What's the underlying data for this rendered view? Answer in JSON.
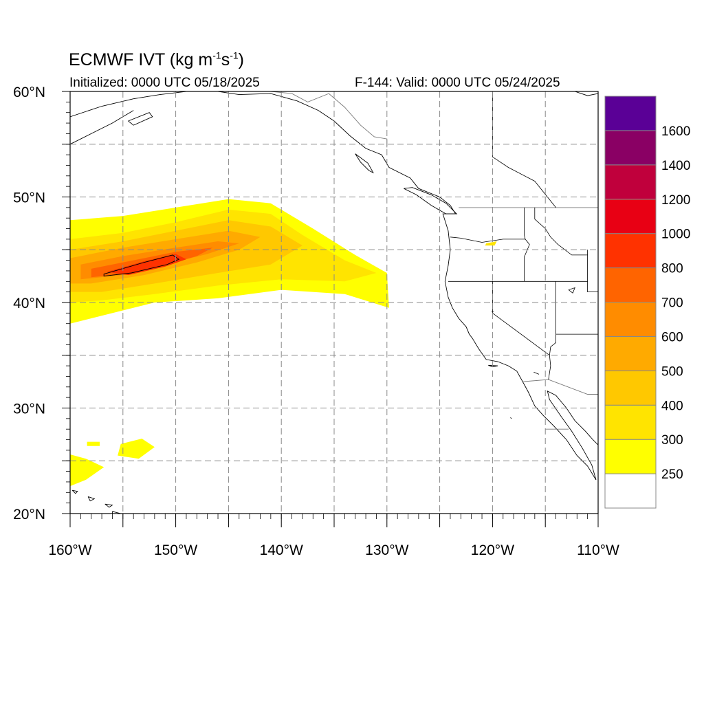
{
  "title": {
    "main": "ECMWF IVT (kg m",
    "exp1": "-1",
    "mid": "s",
    "exp2": "-1",
    "close": ")"
  },
  "initialized": "Initialized: 0000 UTC 05/18/2025",
  "valid": "F-144: Valid: 0000 UTC 05/24/2025",
  "lat_labels": [
    {
      "text": "60°N",
      "value": 60
    },
    {
      "text": "50°N",
      "value": 50
    },
    {
      "text": "40°N",
      "value": 40
    },
    {
      "text": "30°N",
      "value": 30
    },
    {
      "text": "20°N",
      "value": 20
    }
  ],
  "lon_labels": [
    {
      "text": "160°W",
      "value": -160
    },
    {
      "text": "150°W",
      "value": -150
    },
    {
      "text": "140°W",
      "value": -140
    },
    {
      "text": "130°W",
      "value": -130
    },
    {
      "text": "120°W",
      "value": -120
    },
    {
      "text": "110°W",
      "value": -110
    }
  ],
  "map_extent": {
    "lon": [
      -160,
      -110
    ],
    "lat": [
      20,
      60
    ]
  },
  "colorbar": {
    "levels": [
      {
        "label": "",
        "color": "#ffffff"
      },
      {
        "label": "250",
        "color": "#ffff00"
      },
      {
        "label": "300",
        "color": "#ffe400"
      },
      {
        "label": "400",
        "color": "#ffc800"
      },
      {
        "label": "500",
        "color": "#ffaa00"
      },
      {
        "label": "600",
        "color": "#ff8c00"
      },
      {
        "label": "700",
        "color": "#ff6400"
      },
      {
        "label": "800",
        "color": "#ff3200"
      },
      {
        "label": "1000",
        "color": "#e80014"
      },
      {
        "label": "1200",
        "color": "#c0003c"
      },
      {
        "label": "1400",
        "color": "#8a0064"
      },
      {
        "label": "1600",
        "color": "#5a0096"
      }
    ]
  },
  "ivt_features": [
    {
      "name": "atmospheric-river-250",
      "color": "#ffff00",
      "lonlat": [
        [
          -160,
          47.8
        ],
        [
          -155,
          48.2
        ],
        [
          -150,
          49.0
        ],
        [
          -145,
          49.8
        ],
        [
          -141,
          49.4
        ],
        [
          -137,
          47.0
        ],
        [
          -133,
          44.5
        ],
        [
          -130,
          42.8
        ],
        [
          -129.8,
          39.5
        ],
        [
          -134,
          40.8
        ],
        [
          -140,
          41.2
        ],
        [
          -146,
          40.4
        ],
        [
          -152,
          40.0
        ],
        [
          -156,
          39.0
        ],
        [
          -160,
          38.0
        ]
      ]
    },
    {
      "name": "atmospheric-river-300",
      "color": "#ffe400",
      "lonlat": [
        [
          -160,
          46.0
        ],
        [
          -155,
          46.6
        ],
        [
          -150,
          47.6
        ],
        [
          -145,
          48.8
        ],
        [
          -141,
          48.4
        ],
        [
          -138,
          46.4
        ],
        [
          -134,
          44.0
        ],
        [
          -131,
          42.8
        ],
        [
          -134,
          42.0
        ],
        [
          -140,
          42.2
        ],
        [
          -146,
          41.6
        ],
        [
          -152,
          40.8
        ],
        [
          -157,
          40.2
        ],
        [
          -160,
          40.0
        ]
      ]
    },
    {
      "name": "atmospheric-river-400",
      "color": "#ffc800",
      "lonlat": [
        [
          -160,
          45.0
        ],
        [
          -155,
          45.8
        ],
        [
          -150,
          46.8
        ],
        [
          -145,
          47.8
        ],
        [
          -141,
          47.2
        ],
        [
          -138,
          45.4
        ],
        [
          -141,
          43.6
        ],
        [
          -146,
          42.8
        ],
        [
          -152,
          41.8
        ],
        [
          -157,
          41.0
        ],
        [
          -160,
          41.0
        ]
      ]
    },
    {
      "name": "atmospheric-river-500",
      "color": "#ffaa00",
      "lonlat": [
        [
          -160,
          44.2
        ],
        [
          -155,
          45.2
        ],
        [
          -150,
          46.0
        ],
        [
          -145,
          46.8
        ],
        [
          -142,
          46.2
        ],
        [
          -144,
          45.0
        ],
        [
          -148,
          43.8
        ],
        [
          -153,
          42.6
        ],
        [
          -158,
          41.8
        ],
        [
          -160,
          41.8
        ]
      ]
    },
    {
      "name": "atmospheric-river-600",
      "color": "#ff8c00",
      "lonlat": [
        [
          -159,
          43.6
        ],
        [
          -155,
          44.4
        ],
        [
          -150,
          45.2
        ],
        [
          -146,
          45.8
        ],
        [
          -144,
          45.6
        ],
        [
          -147,
          44.6
        ],
        [
          -151,
          43.6
        ],
        [
          -155,
          42.6
        ],
        [
          -159,
          42.2
        ]
      ]
    },
    {
      "name": "atmospheric-river-700",
      "color": "#ff6400",
      "lonlat": [
        [
          -158,
          43.2
        ],
        [
          -154,
          44.0
        ],
        [
          -150,
          44.8
        ],
        [
          -146.5,
          45.2
        ],
        [
          -148,
          44.4
        ],
        [
          -151.5,
          43.4
        ],
        [
          -155,
          42.7
        ],
        [
          -158,
          42.4
        ]
      ]
    },
    {
      "name": "atmospheric-river-800",
      "color": "#ff3200",
      "lonlat": [
        [
          -156.5,
          42.9
        ],
        [
          -153,
          43.9
        ],
        [
          -150,
          44.6
        ],
        [
          -149,
          44.1
        ],
        [
          -151,
          43.4
        ],
        [
          -154.5,
          42.6
        ]
      ]
    },
    {
      "name": "subtropical-blob-a",
      "color": "#ffff00",
      "lonlat": [
        [
          -160,
          25.6
        ],
        [
          -158.5,
          25.2
        ],
        [
          -156.8,
          24.4
        ],
        [
          -158.5,
          23.2
        ],
        [
          -160,
          22.6
        ]
      ]
    },
    {
      "name": "subtropical-blob-b",
      "color": "#ffff00",
      "lonlat": [
        [
          -155.2,
          26.6
        ],
        [
          -153.2,
          27.1
        ],
        [
          -152.0,
          26.3
        ],
        [
          -153.5,
          25.2
        ],
        [
          -155.5,
          25.5
        ]
      ]
    },
    {
      "name": "subtropical-blob-c",
      "color": "#ffff00",
      "lonlat": [
        [
          -158.4,
          26.8
        ],
        [
          -157.2,
          26.8
        ],
        [
          -157.2,
          26.4
        ],
        [
          -158.4,
          26.4
        ]
      ]
    },
    {
      "name": "tiny-blob-near-oregon",
      "color": "#ffe400",
      "lonlat": [
        [
          -120.6,
          45.6
        ],
        [
          -119.6,
          45.8
        ],
        [
          -119.8,
          45.4
        ],
        [
          -120.7,
          45.4
        ]
      ]
    }
  ],
  "contour_1000": {
    "color": "#000000",
    "lonlat": [
      [
        -156.8,
        42.7
      ],
      [
        -153.0,
        43.8
      ],
      [
        -150.3,
        44.5
      ],
      [
        -149.7,
        44.1
      ],
      [
        -150.8,
        43.6
      ],
      [
        -154.2,
        42.8
      ],
      [
        -156.8,
        42.5
      ]
    ]
  },
  "coastlines": [
    {
      "name": "north-america-west-coast",
      "lonlat": [
        [
          -160,
          57.6
        ],
        [
          -157,
          58.6
        ],
        [
          -154,
          59.3
        ],
        [
          -151.5,
          59.7
        ],
        [
          -149,
          60.0
        ],
        [
          -146,
          60.0
        ],
        [
          -144,
          59.7
        ],
        [
          -141,
          59.8
        ],
        [
          -138.5,
          59.1
        ],
        [
          -136.5,
          58.2
        ],
        [
          -135,
          57.2
        ],
        [
          -133.5,
          55.8
        ],
        [
          -132,
          54.6
        ],
        [
          -130.5,
          54.0
        ],
        [
          -129.8,
          52.8
        ],
        [
          -127.8,
          51.8
        ],
        [
          -127,
          50.8
        ],
        [
          -125,
          50.0
        ],
        [
          -124,
          49.2
        ],
        [
          -123.5,
          48.4
        ],
        [
          -124.7,
          48.4
        ],
        [
          -124.2,
          46.8
        ],
        [
          -124,
          45.0
        ],
        [
          -124.2,
          43.5
        ],
        [
          -124.5,
          42.0
        ],
        [
          -124.2,
          40.5
        ],
        [
          -123.8,
          39.5
        ],
        [
          -123.2,
          38.5
        ],
        [
          -122.5,
          37.7
        ],
        [
          -122.2,
          37.0
        ],
        [
          -121.9,
          36.6
        ],
        [
          -121.3,
          35.6
        ],
        [
          -120.6,
          34.6
        ],
        [
          -119.5,
          34.4
        ],
        [
          -118.5,
          34.0
        ],
        [
          -117.7,
          33.5
        ],
        [
          -117.2,
          32.6
        ],
        [
          -116.6,
          31.5
        ],
        [
          -116.0,
          30.2
        ],
        [
          -115.2,
          29.3
        ],
        [
          -114.2,
          28.3
        ],
        [
          -113.0,
          27.0
        ],
        [
          -112.0,
          25.5
        ],
        [
          -111.0,
          24.5
        ],
        [
          -110.2,
          23.2
        ]
      ]
    },
    {
      "name": "gulf-of-california-coast",
      "lonlat": [
        [
          -110.2,
          23.2
        ],
        [
          -110.6,
          24.6
        ],
        [
          -111.5,
          26.2
        ],
        [
          -112.5,
          27.8
        ],
        [
          -113.5,
          29.2
        ],
        [
          -114.6,
          30.8
        ],
        [
          -114.8,
          31.6
        ],
        [
          -114.0,
          31.2
        ],
        [
          -113.0,
          30.0
        ],
        [
          -112.2,
          28.8
        ],
        [
          -111.2,
          27.8
        ],
        [
          -110.5,
          27.0
        ],
        [
          -110,
          26.5
        ]
      ]
    },
    {
      "name": "alaska-peninsula",
      "lonlat": [
        [
          -160,
          55.0
        ],
        [
          -158,
          56.0
        ],
        [
          -156,
          57.0
        ],
        [
          -155,
          57.6
        ],
        [
          -154,
          58.2
        ]
      ]
    },
    {
      "name": "kodiak-island",
      "lonlat": [
        [
          -154.5,
          57.2
        ],
        [
          -152.5,
          58.0
        ],
        [
          -152.2,
          57.6
        ],
        [
          -154.0,
          56.8
        ],
        [
          -154.5,
          57.2
        ]
      ]
    },
    {
      "name": "vancouver-island",
      "lonlat": [
        [
          -128.4,
          50.8
        ],
        [
          -127.2,
          50.2
        ],
        [
          -125.8,
          49.2
        ],
        [
          -124.4,
          48.4
        ],
        [
          -123.4,
          48.4
        ],
        [
          -124.4,
          49.4
        ],
        [
          -125.8,
          50.2
        ],
        [
          -127.6,
          50.9
        ],
        [
          -128.4,
          50.8
        ]
      ]
    },
    {
      "name": "haida-gwaii",
      "lonlat": [
        [
          -133.0,
          54.1
        ],
        [
          -131.8,
          53.2
        ],
        [
          -131.3,
          52.3
        ],
        [
          -131.7,
          52.5
        ],
        [
          -132.5,
          53.3
        ],
        [
          -133.0,
          54.1
        ]
      ]
    },
    {
      "name": "hawaii-big-island",
      "lonlat": [
        [
          -156.0,
          20.2
        ],
        [
          -155.2,
          20.0
        ],
        [
          -154.9,
          19.6
        ],
        [
          -155.6,
          19.0
        ],
        [
          -156.0,
          19.6
        ],
        [
          -156.0,
          20.2
        ]
      ]
    },
    {
      "name": "maui",
      "lonlat": [
        [
          -156.7,
          20.9
        ],
        [
          -156.0,
          20.8
        ],
        [
          -156.3,
          20.6
        ],
        [
          -156.7,
          20.9
        ]
      ]
    },
    {
      "name": "oahu",
      "lonlat": [
        [
          -158.3,
          21.6
        ],
        [
          -157.7,
          21.4
        ],
        [
          -158.1,
          21.2
        ],
        [
          -158.3,
          21.6
        ]
      ]
    },
    {
      "name": "kauai",
      "lonlat": [
        [
          -159.8,
          22.2
        ],
        [
          -159.3,
          22.1
        ],
        [
          -159.5,
          21.9
        ],
        [
          -159.8,
          22.2
        ]
      ]
    },
    {
      "name": "channel-islands",
      "lonlat": [
        [
          -120.4,
          34.05
        ],
        [
          -119.5,
          34.0
        ],
        [
          -120.0,
          33.9
        ],
        [
          -120.4,
          34.05
        ]
      ]
    },
    {
      "name": "guadalupe-island",
      "lonlat": [
        [
          -118.3,
          29.1
        ],
        [
          -118.2,
          29.0
        ]
      ]
    },
    {
      "name": "hudson-bay-edge",
      "lonlat": [
        [
          -112.2,
          60.0
        ],
        [
          -111.0,
          59.6
        ],
        [
          -110.0,
          59.8
        ]
      ]
    }
  ],
  "borders": [
    {
      "name": "us-canada-border",
      "lonlat": [
        [
          -123.2,
          49.0
        ],
        [
          -110,
          49.0
        ]
      ]
    },
    {
      "name": "alaska-canada-border",
      "lonlat": [
        [
          -141,
          60.0
        ],
        [
          -139,
          59.8
        ],
        [
          -137.5,
          59.0
        ],
        [
          -135.5,
          59.8
        ],
        [
          -134,
          58.5
        ],
        [
          -132.5,
          56.8
        ],
        [
          -131.2,
          55.7
        ],
        [
          -130.0,
          55.5
        ],
        [
          -130.0,
          54.7
        ]
      ]
    },
    {
      "name": "us-mexico-border",
      "lonlat": [
        [
          -117.1,
          32.5
        ],
        [
          -114.7,
          32.7
        ],
        [
          -111.0,
          31.3
        ],
        [
          -110,
          31.3
        ]
      ]
    },
    {
      "name": "mexico-state-line",
      "lonlat": [
        [
          -115.0,
          28.0
        ],
        [
          -112.8,
          28.0
        ]
      ]
    }
  ],
  "state_lines": [
    {
      "name": "washington-oregon",
      "lonlat": [
        [
          -124.0,
          46.2
        ],
        [
          -123.0,
          46.1
        ],
        [
          -121.0,
          45.7
        ],
        [
          -119.0,
          46.0
        ],
        [
          -116.9,
          46.0
        ]
      ]
    },
    {
      "name": "oregon-california-nevada",
      "lonlat": [
        [
          -124.2,
          42.0
        ],
        [
          -120.0,
          42.0
        ],
        [
          -117.0,
          42.0
        ],
        [
          -111.0,
          42.0
        ]
      ]
    },
    {
      "name": "washington-idaho",
      "lonlat": [
        [
          -117.0,
          49.0
        ],
        [
          -117.0,
          46.4
        ],
        [
          -116.9,
          46.0
        ]
      ]
    },
    {
      "name": "oregon-idaho",
      "lonlat": [
        [
          -116.9,
          46.0
        ],
        [
          -116.5,
          45.5
        ],
        [
          -117.0,
          44.3
        ],
        [
          -117.0,
          42.0
        ]
      ]
    },
    {
      "name": "idaho-montana",
      "lonlat": [
        [
          -116.0,
          49.0
        ],
        [
          -116.0,
          47.9
        ],
        [
          -115.0,
          47.0
        ],
        [
          -114.5,
          46.2
        ],
        [
          -113.8,
          45.5
        ],
        [
          -112.5,
          44.5
        ],
        [
          -111.0,
          44.5
        ]
      ]
    },
    {
      "name": "idaho-wyoming-edge",
      "lonlat": [
        [
          -111.0,
          45.0
        ],
        [
          -111.0,
          41.0
        ],
        [
          -110,
          41.0
        ]
      ]
    },
    {
      "name": "nevada-california",
      "lonlat": [
        [
          -120.0,
          42.0
        ],
        [
          -120.0,
          39.0
        ],
        [
          -114.6,
          35.0
        ]
      ]
    },
    {
      "name": "nevada-utah",
      "lonlat": [
        [
          -114.0,
          42.0
        ],
        [
          -114.0,
          36.2
        ],
        [
          -114.5,
          35.8
        ],
        [
          -114.6,
          35.0
        ]
      ]
    },
    {
      "name": "utah-arizona",
      "lonlat": [
        [
          -114.0,
          37.0
        ],
        [
          -110,
          37.0
        ]
      ]
    },
    {
      "name": "california-arizona",
      "lonlat": [
        [
          -114.6,
          35.0
        ],
        [
          -114.5,
          34.0
        ],
        [
          -114.7,
          32.7
        ]
      ]
    },
    {
      "name": "yukon-bc",
      "lonlat": [
        [
          -120.0,
          60.0
        ],
        [
          -120.0,
          53.8
        ],
        [
          -118.5,
          52.8
        ],
        [
          -116.0,
          51.5
        ],
        [
          -114.0,
          49.0
        ]
      ]
    }
  ],
  "lakes": [
    {
      "name": "great-salt-lake",
      "lonlat": [
        [
          -112.8,
          41.2
        ],
        [
          -112.2,
          41.4
        ],
        [
          -112.4,
          40.9
        ],
        [
          -112.8,
          41.2
        ]
      ]
    },
    {
      "name": "lake-tahoe",
      "lonlat": [
        [
          -120.1,
          39.2
        ],
        [
          -119.9,
          39.1
        ]
      ]
    },
    {
      "name": "salton-sea",
      "lonlat": [
        [
          -116.1,
          33.4
        ],
        [
          -115.6,
          33.2
        ]
      ]
    }
  ]
}
